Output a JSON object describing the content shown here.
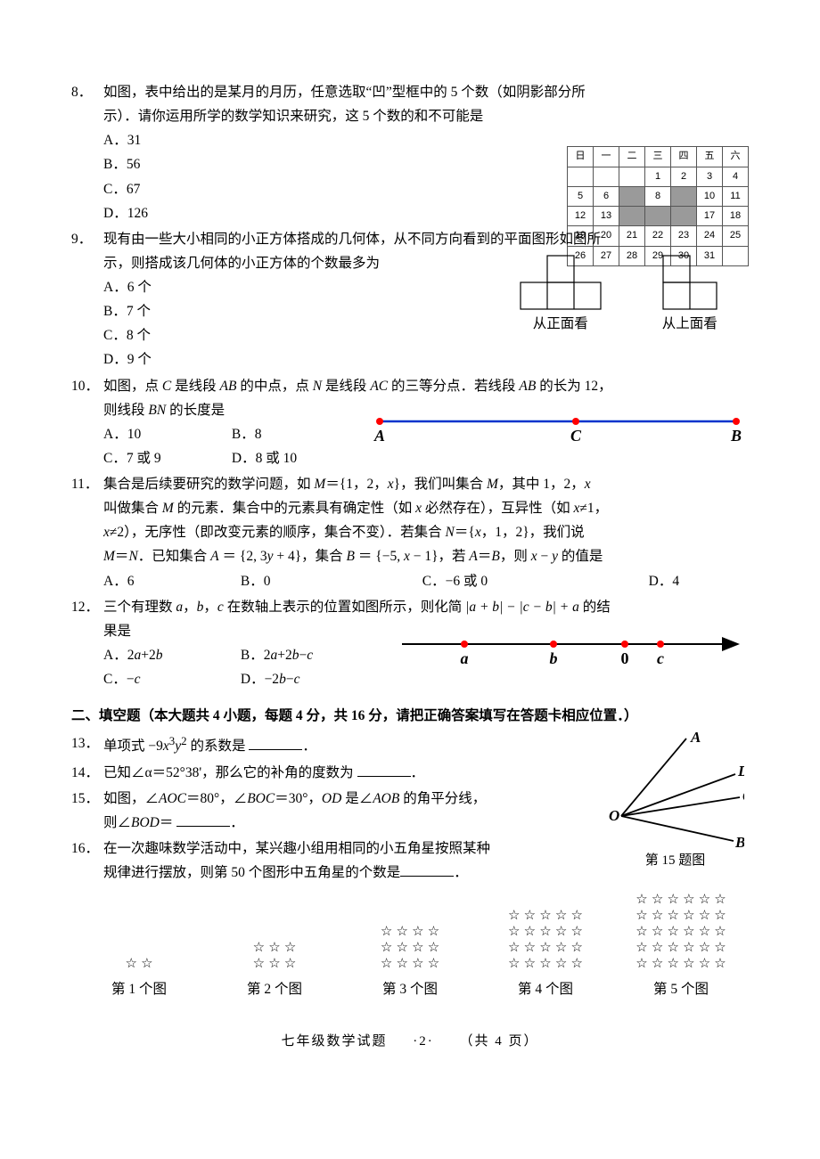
{
  "q8": {
    "num": "8．",
    "text_line1": "如图，表中给出的是某月的月历，任意选取“凹”型框中的 5 个数（如阴影部分所",
    "text_line2": "示）．请你运用所学的数学知识来研究，这 5 个数的和不可能是",
    "opts": {
      "A": "A．31",
      "B": "B．56",
      "C": "C．67",
      "D": "D．126"
    },
    "calendar": {
      "header": [
        "日",
        "一",
        "二",
        "三",
        "四",
        "五",
        "六"
      ],
      "rows": [
        [
          {
            "v": ""
          },
          {
            "v": ""
          },
          {
            "v": ""
          },
          {
            "v": "1"
          },
          {
            "v": "2"
          },
          {
            "v": "3"
          },
          {
            "v": "4"
          }
        ],
        [
          {
            "v": "5"
          },
          {
            "v": "6"
          },
          {
            "v": "",
            "s": true
          },
          {
            "v": "8"
          },
          {
            "v": "",
            "s": true
          },
          {
            "v": "10"
          },
          {
            "v": "11"
          }
        ],
        [
          {
            "v": "12"
          },
          {
            "v": "13"
          },
          {
            "v": "",
            "s": true
          },
          {
            "v": "",
            "s": true
          },
          {
            "v": "",
            "s": true
          },
          {
            "v": "17"
          },
          {
            "v": "18"
          }
        ],
        [
          {
            "v": "19"
          },
          {
            "v": "20"
          },
          {
            "v": "21"
          },
          {
            "v": "22"
          },
          {
            "v": "23"
          },
          {
            "v": "24"
          },
          {
            "v": "25"
          }
        ],
        [
          {
            "v": "26"
          },
          {
            "v": "27"
          },
          {
            "v": "28"
          },
          {
            "v": "29"
          },
          {
            "v": "30"
          },
          {
            "v": "31"
          },
          {
            "v": ""
          }
        ]
      ]
    }
  },
  "q9": {
    "num": "9．",
    "text_line1": "现有由一些大小相同的小正方体搭成的几何体，从不同方向看到的平面图形如图所",
    "text_line2": "示，则搭成该几何体的小正方体的个数最多为",
    "opts": {
      "A": "A．6 个",
      "B": "B．7 个",
      "C": "C．8 个",
      "D": "D．9 个"
    },
    "views": {
      "front": "从正面看",
      "top": "从上面看"
    },
    "grid": {
      "cell": 30,
      "stroke": "#000000"
    }
  },
  "q10": {
    "num": "10．",
    "text": "如图，点 C 是线段 AB 的中点，点 N 是线段 AC 的三等分点．若线段 AB 的长为 12，",
    "text2": "则线段 BN 的长度是",
    "opts": {
      "A": "A．10",
      "B": "B．8",
      "C": "C．7 或 9",
      "D": "D．8 或 10"
    },
    "line": {
      "labels": {
        "A": "A",
        "C": "C",
        "B": "B"
      },
      "pointColor": "#ff0000",
      "lineColor": "#0033cc"
    }
  },
  "q11": {
    "num": "11．",
    "l1": "集合是后续要研究的数学问题，如 M＝{1，2，x}，我们叫集合 M，其中 1，2，x",
    "l2": "叫做集合 M 的元素．集合中的元素具有确定性（如 x 必然存在），互异性（如 x≠1，",
    "l3": "x≠2），无序性（即改变元素的顺序，集合不变）．若集合 N＝{x，1，2}，我们说",
    "l4a": "M＝N．已知集合 ",
    "l4b": "A ＝ {2, 3y + 4}",
    "l4c": "，集合 ",
    "l4d": "B ＝ {−5, x − 1}",
    "l4e": "，若 A＝B，则 x − y 的值是",
    "opts": {
      "A": "A．6",
      "B": "B．0",
      "C": "C．−6 或 0",
      "D": "D．4"
    }
  },
  "q12": {
    "num": "12．",
    "text": "三个有理数 a，b，c 在数轴上表示的位置如图所示，则化简",
    "expr": "|a + b| − |c − b| + a",
    "text2": "的结",
    "text3": "果是",
    "opts": {
      "A": "A．2a+2b",
      "B": "B．2a+2b−c",
      "C": "C．−c",
      "D": "D．−2b−c"
    },
    "numline": {
      "labels": {
        "a": "a",
        "b": "b",
        "zero": "0",
        "c": "c"
      },
      "pointColor": "#ff0000",
      "lineColor": "#000000"
    }
  },
  "section2": {
    "title": "二、填空题（本大题共 4 小题，每题 4 分，共 16 分，请把正确答案填写在答题卡相应位置．）"
  },
  "q13": {
    "num": "13．",
    "before": "单项式 −9",
    "var": "x",
    "exp1": "3",
    "var2": "y",
    "exp2": "2",
    "after": " 的系数是 "
  },
  "q14": {
    "num": "14．",
    "text": "已知∠α＝52°38'，那么它的补角的度数为 "
  },
  "q15": {
    "num": "15．",
    "l1": "如图，∠AOC＝80°，∠BOC＝30°，OD 是∠AOB 的角平分线，",
    "l2": "则∠BOD＝ ",
    "caption": "第 15 题图",
    "diagram": {
      "labels": {
        "A": "A",
        "D": "D",
        "C": "C",
        "B": "B",
        "O": "O"
      },
      "stroke": "#000000"
    }
  },
  "q16": {
    "num": "16．",
    "l1": "在一次趣味数学活动中，某兴趣小组用相同的小五角星按照某种",
    "l2": "规律进行摆放，则第 50 个图形中五角星的个数是",
    "star": "☆",
    "groups": [
      {
        "label": "第 1 个图",
        "rows": [
          2
        ]
      },
      {
        "label": "第 2 个图",
        "rows": [
          3,
          3
        ]
      },
      {
        "label": "第 3 个图",
        "rows": [
          4,
          4,
          4
        ]
      },
      {
        "label": "第 4 个图",
        "rows": [
          5,
          5,
          5,
          5
        ]
      },
      {
        "label": "第 5 个图",
        "rows": [
          6,
          6,
          6,
          6,
          6
        ]
      }
    ]
  },
  "footer": {
    "a": "七年级数学试题",
    "b": "·2·",
    "c": "（共 4 页）"
  }
}
